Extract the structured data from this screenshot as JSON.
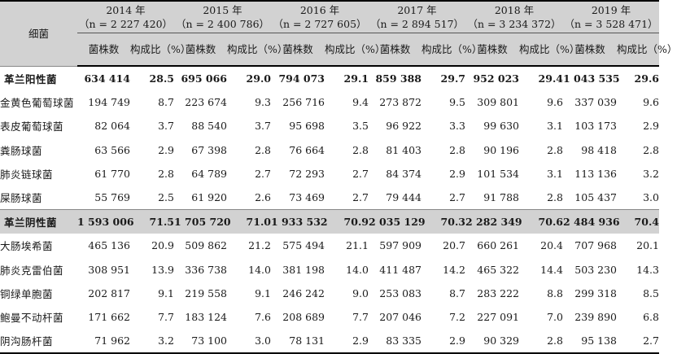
{
  "header": {
    "label": "细菌",
    "count_label": "菌株数",
    "ratio_label": "构成比（%）",
    "years": [
      {
        "year": "2014 年",
        "n": "（n = 2 227 420）"
      },
      {
        "year": "2015 年",
        "n": "（n = 2 400 786）"
      },
      {
        "year": "2016 年",
        "n": "（n = 2 727 605）"
      },
      {
        "year": "2017 年",
        "n": "（n = 2 894 517）"
      },
      {
        "year": "2018 年",
        "n": "（n = 3 234 372）"
      },
      {
        "year": "2019 年",
        "n": "（n = 3 528 471）"
      }
    ]
  },
  "rows": [
    {
      "name": "革兰阳性菌",
      "total": true,
      "group": "pos",
      "cells": [
        [
          "634 414",
          "28.5"
        ],
        [
          "695 066",
          "29.0"
        ],
        [
          "794 073",
          "29.1"
        ],
        [
          "859 388",
          "29.7"
        ],
        [
          "952 023",
          "29.4"
        ],
        [
          "1 043 535",
          "29.6"
        ]
      ]
    },
    {
      "name": "金黄色葡萄球菌",
      "cells": [
        [
          "194 749",
          "8.7"
        ],
        [
          "223 674",
          "9.3"
        ],
        [
          "256 716",
          "9.4"
        ],
        [
          "273 872",
          "9.5"
        ],
        [
          "309 801",
          "9.6"
        ],
        [
          "337 039",
          "9.6"
        ]
      ]
    },
    {
      "name": "表皮葡萄球菌",
      "cells": [
        [
          "82 064",
          "3.7"
        ],
        [
          "88 540",
          "3.7"
        ],
        [
          "95 698",
          "3.5"
        ],
        [
          "96 922",
          "3.3"
        ],
        [
          "99 630",
          "3.1"
        ],
        [
          "103 173",
          "2.9"
        ]
      ]
    },
    {
      "name": "粪肠球菌",
      "cells": [
        [
          "63 566",
          "2.9"
        ],
        [
          "67 398",
          "2.8"
        ],
        [
          "76 664",
          "2.8"
        ],
        [
          "81 403",
          "2.8"
        ],
        [
          "90 196",
          "2.8"
        ],
        [
          "98 418",
          "2.8"
        ]
      ]
    },
    {
      "name": "肺炎链球菌",
      "cells": [
        [
          "61 770",
          "2.8"
        ],
        [
          "64 789",
          "2.7"
        ],
        [
          "72 293",
          "2.7"
        ],
        [
          "84 374",
          "2.9"
        ],
        [
          "101 534",
          "3.1"
        ],
        [
          "113 136",
          "3.2"
        ]
      ]
    },
    {
      "name": "屎肠球菌",
      "cells": [
        [
          "55 769",
          "2.5"
        ],
        [
          "61 920",
          "2.6"
        ],
        [
          "73 469",
          "2.7"
        ],
        [
          "79 444",
          "2.7"
        ],
        [
          "91 788",
          "2.8"
        ],
        [
          "105 437",
          "3.0"
        ]
      ]
    },
    {
      "name": "革兰阴性菌",
      "total": true,
      "group": "neg",
      "cells": [
        [
          "1 593 006",
          "71.5"
        ],
        [
          "1 705 720",
          "71.0"
        ],
        [
          "1 933 532",
          "70.9"
        ],
        [
          "2 035 129",
          "70.3"
        ],
        [
          "2 282 349",
          "70.6"
        ],
        [
          "2 484 936",
          "70.4"
        ]
      ]
    },
    {
      "name": "大肠埃希菌",
      "cells": [
        [
          "465 136",
          "20.9"
        ],
        [
          "509 862",
          "21.2"
        ],
        [
          "575 494",
          "21.1"
        ],
        [
          "597 909",
          "20.7"
        ],
        [
          "660 261",
          "20.4"
        ],
        [
          "707 968",
          "20.1"
        ]
      ]
    },
    {
      "name": "肺炎克雷伯菌",
      "cells": [
        [
          "308 951",
          "13.9"
        ],
        [
          "336 738",
          "14.0"
        ],
        [
          "381 198",
          "14.0"
        ],
        [
          "411 487",
          "14.2"
        ],
        [
          "465 322",
          "14.4"
        ],
        [
          "503 230",
          "14.3"
        ]
      ]
    },
    {
      "name": "铜绿单胞菌",
      "cells": [
        [
          "202 817",
          "9.1"
        ],
        [
          "219 558",
          "9.1"
        ],
        [
          "246 242",
          "9.0"
        ],
        [
          "253 083",
          "8.7"
        ],
        [
          "283 222",
          "8.8"
        ],
        [
          "299 318",
          "8.5"
        ]
      ]
    },
    {
      "name": "鲍曼不动杆菌",
      "cells": [
        [
          "171 662",
          "7.7"
        ],
        [
          "183 124",
          "7.6"
        ],
        [
          "208 689",
          "7.7"
        ],
        [
          "207 046",
          "7.2"
        ],
        [
          "227 091",
          "7.0"
        ],
        [
          "239 890",
          "6.8"
        ]
      ]
    },
    {
      "name": "阴沟肠杆菌",
      "cells": [
        [
          "71 962",
          "3.2"
        ],
        [
          "73 100",
          "3.0"
        ],
        [
          "78 131",
          "2.9"
        ],
        [
          "83 335",
          "2.9"
        ],
        [
          "90 329",
          "2.8"
        ],
        [
          "95 138",
          "2.7"
        ]
      ]
    }
  ]
}
